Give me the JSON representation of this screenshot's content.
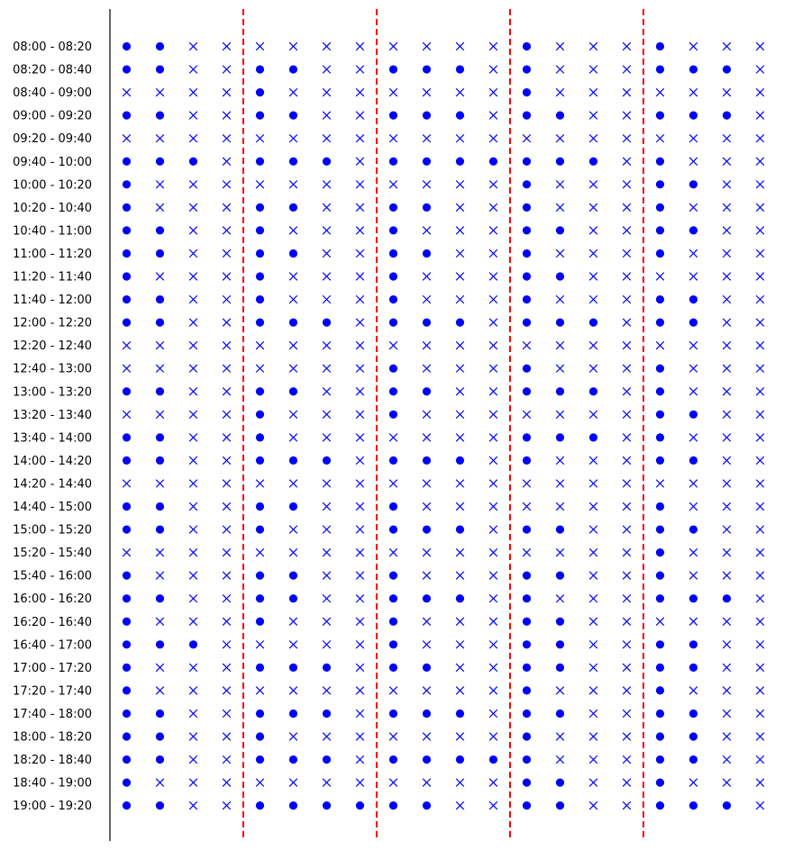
{
  "chart_data": {
    "type": "scatter",
    "title": "",
    "xlabel": "",
    "ylabel": "",
    "grid": false,
    "legend": "none",
    "colors": {
      "marker": "#0000ff",
      "separator": "#ff0000",
      "axis": "#000000"
    },
    "time_slots": [
      "08:00 - 08:20",
      "08:20 - 08:40",
      "08:40 - 09:00",
      "09:00 - 09:20",
      "09:20 - 09:40",
      "09:40 - 10:00",
      "10:00 - 10:20",
      "10:20 - 10:40",
      "10:40 - 11:00",
      "11:00 - 11:20",
      "11:20 - 11:40",
      "11:40 - 12:00",
      "12:00 - 12:20",
      "12:20 - 12:40",
      "12:40 - 13:00",
      "13:00 - 13:20",
      "13:20 - 13:40",
      "13:40 - 14:00",
      "14:00 - 14:20",
      "14:20 - 14:40",
      "14:40 - 15:00",
      "15:00 - 15:20",
      "15:20 - 15:40",
      "15:40 - 16:00",
      "16:00 - 16:20",
      "16:20 - 16:40",
      "16:40 - 17:00",
      "17:00 - 17:20",
      "17:20 - 17:40",
      "17:40 - 18:00",
      "18:00 - 18:20",
      "18:20 - 18:40",
      "18:40 - 19:00",
      "19:00 - 19:20"
    ],
    "groups": 5,
    "columns_per_group": 4,
    "separators_after_group": [
      1,
      2,
      3,
      4
    ],
    "markers": {
      "1": "filled-circle",
      "0": "cross"
    },
    "availability": [
      [
        "1100",
        "0000",
        "0000",
        "1000",
        "1000"
      ],
      [
        "1100",
        "1100",
        "1110",
        "1000",
        "1110"
      ],
      [
        "0000",
        "1000",
        "0000",
        "1000",
        "0000"
      ],
      [
        "1100",
        "1100",
        "1110",
        "1100",
        "1110"
      ],
      [
        "0000",
        "0000",
        "0000",
        "0000",
        "0000"
      ],
      [
        "1110",
        "1110",
        "1111",
        "1110",
        "1000"
      ],
      [
        "1000",
        "0000",
        "0000",
        "1000",
        "1100"
      ],
      [
        "1000",
        "1100",
        "1100",
        "1000",
        "1000"
      ],
      [
        "1100",
        "1000",
        "1000",
        "1100",
        "1100"
      ],
      [
        "1100",
        "1100",
        "1100",
        "1000",
        "1000"
      ],
      [
        "1000",
        "1000",
        "1000",
        "1100",
        "0000"
      ],
      [
        "1100",
        "1000",
        "1000",
        "1000",
        "1100"
      ],
      [
        "1100",
        "1110",
        "1110",
        "1110",
        "1100"
      ],
      [
        "0000",
        "0000",
        "0000",
        "0000",
        "0000"
      ],
      [
        "0000",
        "0000",
        "1000",
        "1000",
        "1000"
      ],
      [
        "1100",
        "1100",
        "1100",
        "1110",
        "1000"
      ],
      [
        "0000",
        "1000",
        "1000",
        "0000",
        "1100"
      ],
      [
        "1100",
        "1000",
        "0000",
        "1110",
        "1000"
      ],
      [
        "1100",
        "1110",
        "1110",
        "1000",
        "1100"
      ],
      [
        "0000",
        "0000",
        "0000",
        "0000",
        "0000"
      ],
      [
        "1100",
        "1100",
        "1000",
        "0000",
        "1000"
      ],
      [
        "1100",
        "1000",
        "1110",
        "1100",
        "1100"
      ],
      [
        "0000",
        "0000",
        "0000",
        "0000",
        "1000"
      ],
      [
        "1000",
        "1100",
        "1000",
        "1100",
        "1000"
      ],
      [
        "1100",
        "1100",
        "1110",
        "1000",
        "1110"
      ],
      [
        "1000",
        "1000",
        "1000",
        "1100",
        "0000"
      ],
      [
        "1110",
        "0000",
        "1000",
        "1100",
        "1100"
      ],
      [
        "1000",
        "1110",
        "1100",
        "1100",
        "1100"
      ],
      [
        "1000",
        "0000",
        "0000",
        "1000",
        "1000"
      ],
      [
        "1100",
        "1110",
        "1110",
        "1100",
        "1100"
      ],
      [
        "1100",
        "1000",
        "0000",
        "1000",
        "1100"
      ],
      [
        "1100",
        "1110",
        "1111",
        "1000",
        "1100"
      ],
      [
        "1000",
        "0000",
        "0000",
        "1100",
        "1000"
      ],
      [
        "1100",
        "1111",
        "1100",
        "1100",
        "1110"
      ]
    ]
  }
}
